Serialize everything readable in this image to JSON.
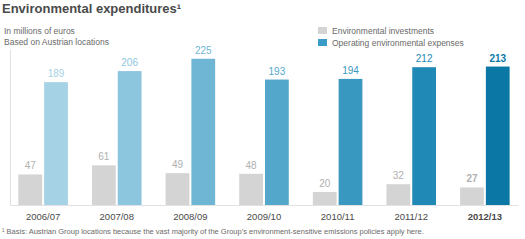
{
  "chart_data": {
    "type": "bar",
    "title": "Environmental expenditures¹",
    "subtitle": [
      "In millions of euros",
      "Based on Austrian locations"
    ],
    "annotations": [
      "¹ Basis: Austrian Group locations because the vast majority of the Group’s environment-sensitive emissions policies apply here."
    ],
    "categories": [
      "2006/07",
      "2007/08",
      "2008/09",
      "2009/10",
      "2010/11",
      "2011/12",
      "2012/13"
    ],
    "series": [
      {
        "name": "Environmental investments",
        "color": "#d4d4d4",
        "values": [
          47,
          61,
          49,
          48,
          20,
          32,
          27
        ]
      },
      {
        "name": "Operating environmental expenses",
        "color": "#3a9cc6",
        "colors": [
          "#a6d2e5",
          "#8cc5de",
          "#6fb6d5",
          "#52a7ca",
          "#3898c0",
          "#2089b5",
          "#0b77a5"
        ],
        "values": [
          189,
          206,
          225,
          193,
          194,
          212,
          213
        ]
      }
    ],
    "ylim": [
      0,
      240
    ],
    "tick_labels": "x",
    "grid": false,
    "legend": "top-right",
    "data_labels": true
  }
}
